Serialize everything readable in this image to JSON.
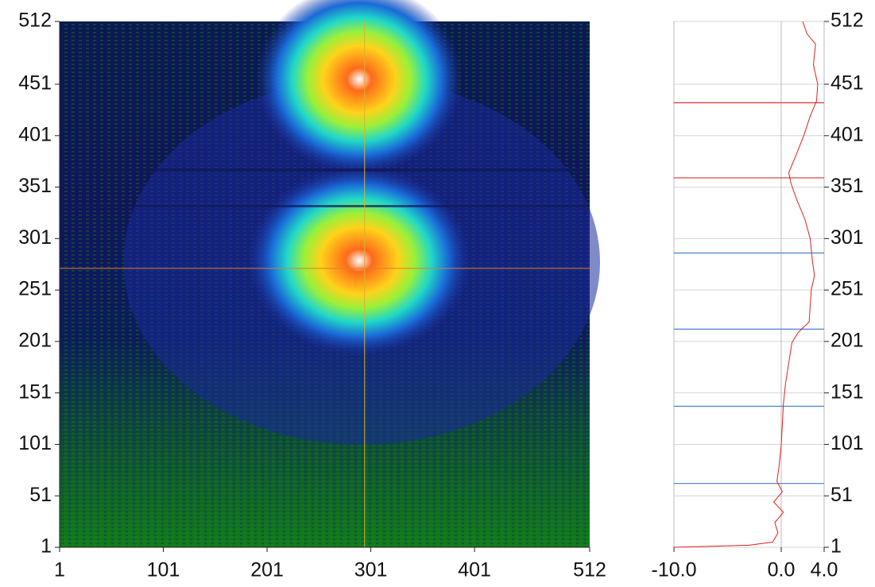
{
  "chart_data": [
    {
      "type": "heatmap",
      "xlim": [
        1,
        512
      ],
      "ylim": [
        1,
        512
      ],
      "xticks": [
        1,
        101,
        201,
        301,
        401,
        512
      ],
      "yticks": [
        1,
        51,
        101,
        151,
        201,
        251,
        301,
        351,
        401,
        451,
        512
      ],
      "cursor": {
        "x": 295,
        "y": 272
      }
    },
    {
      "type": "line",
      "xlim": [
        -10.0,
        4.0
      ],
      "xticks": [
        {
          "value": -10,
          "label": "-10.0"
        },
        {
          "value": 0,
          "label": "0.0"
        },
        {
          "value": 4,
          "label": "4.0"
        }
      ],
      "ylim": [
        1,
        512
      ],
      "yticks": [
        1,
        51,
        101,
        151,
        201,
        251,
        301,
        351,
        401,
        451,
        512
      ],
      "grid": true,
      "color": "#e02020",
      "rows": [
        1,
        3,
        6,
        15,
        25,
        35,
        45,
        55,
        65,
        80,
        100,
        120,
        140,
        160,
        180,
        200,
        210,
        220,
        235,
        251,
        265,
        280,
        301,
        320,
        340,
        355,
        365,
        380,
        401,
        420,
        435,
        451,
        470,
        490,
        500,
        512
      ],
      "values": [
        -10,
        -3,
        -0.8,
        -0.3,
        -0.6,
        0.2,
        -0.7,
        0.1,
        -0.4,
        -0.2,
        0,
        0.1,
        0.2,
        0.4,
        0.7,
        1.0,
        1.6,
        2.6,
        2.7,
        2.8,
        3.1,
        2.9,
        2.7,
        2.2,
        1.4,
        0.9,
        0.7,
        1.3,
        2.1,
        2.7,
        3.3,
        3.4,
        3.0,
        3.2,
        2.4,
        2.0
      ],
      "markers": [
        {
          "row": 433,
          "color": "#e03030"
        },
        {
          "row": 360,
          "color": "#e03030"
        },
        {
          "row": 287,
          "color": "#4a7fd0"
        },
        {
          "row": 213,
          "color": "#4a7fd0"
        },
        {
          "row": 138,
          "color": "#4a7fd0"
        },
        {
          "row": 63,
          "color": "#4a7fd0"
        }
      ]
    }
  ]
}
